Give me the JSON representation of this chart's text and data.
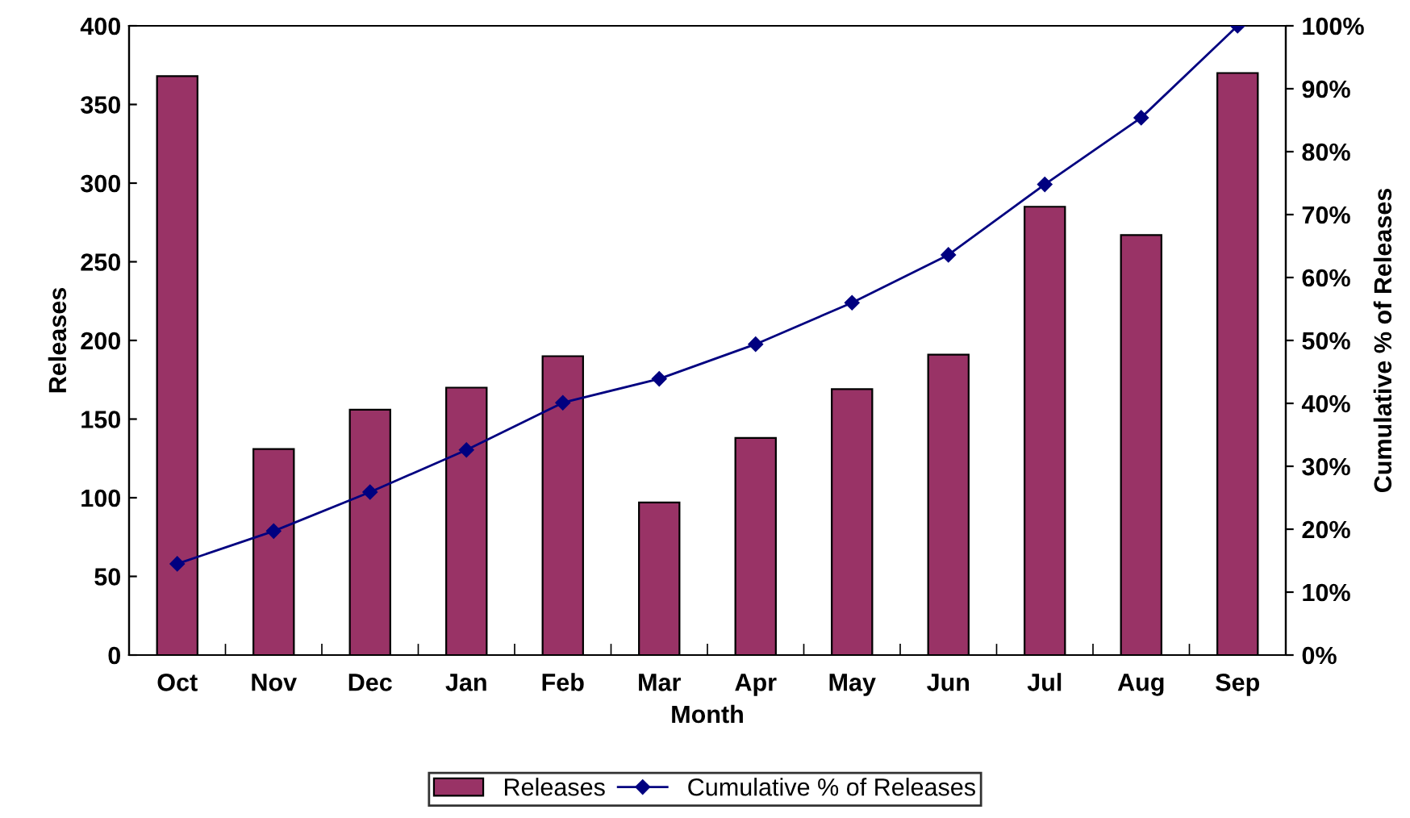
{
  "chart_data": {
    "type": "bar",
    "xlabel": "Month",
    "ylabel": "Releases",
    "y2label": "Cumulative % of Releases",
    "categories": [
      "Oct",
      "Nov",
      "Dec",
      "Jan",
      "Feb",
      "Mar",
      "Apr",
      "May",
      "Jun",
      "Jul",
      "Aug",
      "Sep"
    ],
    "series": [
      {
        "name": "Releases",
        "color": "#993366",
        "values": [
          368,
          131,
          156,
          170,
          190,
          97,
          138,
          169,
          191,
          285,
          267,
          370
        ]
      },
      {
        "name": "Cumulative % of Releases",
        "type": "line",
        "axis": "y2",
        "color": "#000080",
        "marker": "diamond",
        "values": [
          14.5,
          19.7,
          25.9,
          32.6,
          40.1,
          43.9,
          49.4,
          56.0,
          63.6,
          74.8,
          85.4,
          100
        ]
      }
    ],
    "ylim": [
      0,
      400
    ],
    "yticks": [
      0,
      50,
      100,
      150,
      200,
      250,
      300,
      350,
      400
    ],
    "y2lim": [
      0,
      100
    ],
    "y2ticks": [
      {
        "value": 0,
        "label": "0%"
      },
      {
        "value": 10,
        "label": "10%"
      },
      {
        "value": 20,
        "label": "20%"
      },
      {
        "value": 30,
        "label": "30%"
      },
      {
        "value": 40,
        "label": "40%"
      },
      {
        "value": 50,
        "label": "50%"
      },
      {
        "value": 60,
        "label": "60%"
      },
      {
        "value": 70,
        "label": "70%"
      },
      {
        "value": 80,
        "label": "80%"
      },
      {
        "value": 90,
        "label": "90%"
      },
      {
        "value": 100,
        "label": "100%"
      }
    ],
    "grid": false,
    "legend": "bottom"
  }
}
